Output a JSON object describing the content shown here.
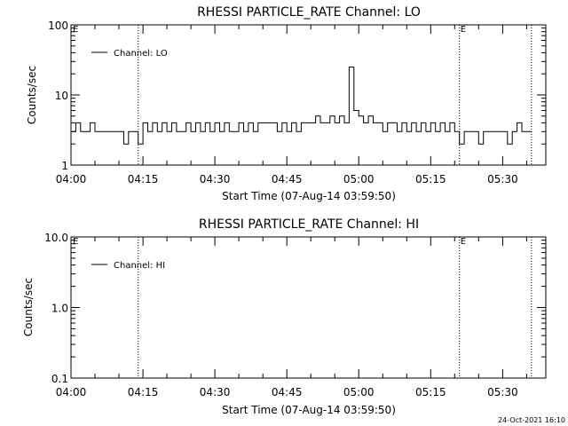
{
  "footer": {
    "timestamp": "24-Oct-2021 16:10"
  },
  "chart_data": [
    {
      "type": "line",
      "title": "RHESSI PARTICLE_RATE Channel: LO",
      "xlabel": "Start Time (07-Aug-14 03:59:50)",
      "ylabel": "Counts/sec",
      "yscale": "log",
      "ylim": [
        1,
        100
      ],
      "y_ticks": [
        "1",
        "10",
        "100"
      ],
      "xlim_minutes_after_0400": [
        0,
        99
      ],
      "x_ticks": [
        "04:00",
        "04:15",
        "04:30",
        "04:45",
        "05:00",
        "05:15",
        "05:30"
      ],
      "legend": {
        "label": "Channel: LO",
        "location": "top-left"
      },
      "grid": false,
      "event_markers": [
        {
          "time": "04:14",
          "label": ""
        },
        {
          "time": "05:21",
          "label": "E"
        },
        {
          "time": "05:36",
          "label": ""
        }
      ],
      "edge_label": "E",
      "series": [
        {
          "name": "Channel: LO",
          "x": [
            "04:00",
            "04:01",
            "04:02",
            "04:03",
            "04:04",
            "04:05",
            "04:06",
            "04:07",
            "04:08",
            "04:09",
            "04:10",
            "04:11",
            "04:12",
            "04:13",
            "04:14",
            "04:15",
            "04:16",
            "04:17",
            "04:18",
            "04:19",
            "04:20",
            "04:21",
            "04:22",
            "04:23",
            "04:24",
            "04:25",
            "04:26",
            "04:27",
            "04:28",
            "04:29",
            "04:30",
            "04:31",
            "04:32",
            "04:33",
            "04:34",
            "04:35",
            "04:36",
            "04:37",
            "04:38",
            "04:39",
            "04:40",
            "04:41",
            "04:42",
            "04:43",
            "04:44",
            "04:45",
            "04:46",
            "04:47",
            "04:48",
            "04:49",
            "04:50",
            "04:51",
            "04:52",
            "04:53",
            "04:54",
            "04:55",
            "04:56",
            "04:57",
            "04:58",
            "04:59",
            "05:00",
            "05:01",
            "05:02",
            "05:03",
            "05:04",
            "05:05",
            "05:06",
            "05:07",
            "05:08",
            "05:09",
            "05:10",
            "05:11",
            "05:12",
            "05:13",
            "05:14",
            "05:15",
            "05:16",
            "05:17",
            "05:18",
            "05:19",
            "05:20",
            "05:21",
            "05:22",
            "05:23",
            "05:24",
            "05:25",
            "05:26",
            "05:27",
            "05:28",
            "05:29",
            "05:30",
            "05:31",
            "05:32",
            "05:33",
            "05:34",
            "05:35"
          ],
          "y": [
            3,
            4,
            3,
            3,
            4,
            3,
            3,
            3,
            3,
            3,
            3,
            2,
            3,
            3,
            2,
            4,
            3,
            4,
            3,
            4,
            3,
            4,
            3,
            3,
            4,
            3,
            4,
            3,
            4,
            3,
            4,
            3,
            4,
            3,
            3,
            4,
            3,
            4,
            3,
            4,
            4,
            4,
            4,
            3,
            4,
            3,
            4,
            3,
            4,
            4,
            4,
            5,
            4,
            4,
            5,
            4,
            5,
            4,
            25,
            6,
            5,
            4,
            5,
            4,
            4,
            3,
            4,
            4,
            3,
            4,
            3,
            4,
            3,
            4,
            3,
            4,
            3,
            4,
            3,
            4,
            3,
            2,
            3,
            3,
            3,
            2,
            3,
            3,
            3,
            3,
            3,
            2,
            3,
            4,
            3,
            3
          ]
        }
      ]
    },
    {
      "type": "line",
      "title": "RHESSI PARTICLE_RATE Channel: HI",
      "xlabel": "Start Time (07-Aug-14 03:59:50)",
      "ylabel": "Counts/sec",
      "yscale": "log",
      "ylim": [
        0.1,
        10
      ],
      "y_ticks": [
        "0.1",
        "1.0",
        "10.0"
      ],
      "xlim_minutes_after_0400": [
        0,
        99
      ],
      "x_ticks": [
        "04:00",
        "04:15",
        "04:30",
        "04:45",
        "05:00",
        "05:15",
        "05:30"
      ],
      "legend": {
        "label": "Channel: HI",
        "location": "top-left"
      },
      "grid": false,
      "event_markers": [
        {
          "time": "04:14",
          "label": ""
        },
        {
          "time": "05:21",
          "label": "E"
        },
        {
          "time": "05:36",
          "label": ""
        }
      ],
      "edge_label": "E",
      "series": [
        {
          "name": "Channel: HI",
          "x": [],
          "y": []
        }
      ]
    }
  ]
}
